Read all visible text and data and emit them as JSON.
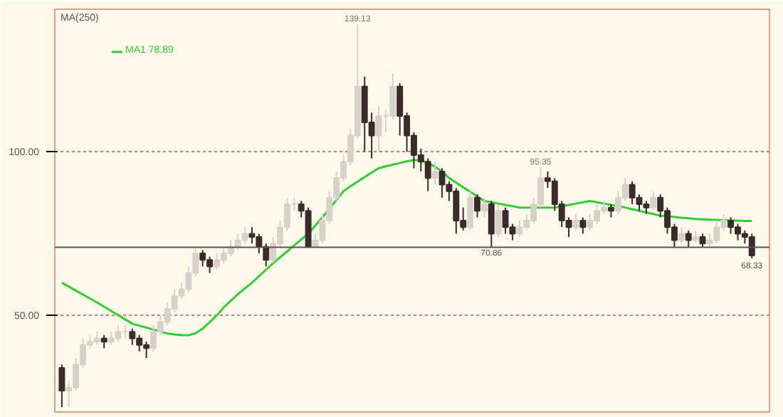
{
  "chart_data": {
    "type": "candlestick",
    "categories": [
      null,
      null,
      null,
      null,
      null,
      null,
      null,
      null,
      null,
      null,
      null,
      null,
      null,
      null,
      null,
      null,
      null,
      null,
      null,
      null,
      null,
      null,
      null,
      null,
      null,
      null,
      null,
      null,
      null,
      null,
      null,
      null,
      null,
      null,
      null,
      null,
      null,
      null,
      null,
      null,
      null,
      null,
      null,
      null,
      null,
      null,
      null,
      null,
      null,
      null,
      null,
      null,
      null,
      null,
      null,
      null,
      null,
      null,
      null,
      null,
      null,
      null,
      null,
      null,
      null,
      null,
      null,
      null,
      null,
      null,
      null,
      null,
      null,
      null,
      null,
      null,
      null,
      null,
      null,
      null,
      null,
      null,
      null,
      null,
      null,
      null,
      null,
      null,
      null,
      null,
      null,
      null,
      null,
      null,
      null,
      null,
      null,
      null,
      null
    ],
    "ohlc": [
      [
        34,
        35,
        22,
        27
      ],
      [
        27,
        30,
        22,
        28
      ],
      [
        28,
        37,
        27,
        35
      ],
      [
        35,
        43,
        34,
        41
      ],
      [
        41,
        44,
        40,
        42
      ],
      [
        42,
        45,
        41,
        43
      ],
      [
        43,
        44,
        40,
        42
      ],
      [
        42,
        45,
        41,
        43
      ],
      [
        43,
        47,
        42,
        45
      ],
      [
        45,
        47,
        43,
        45
      ],
      [
        45,
        46,
        41,
        43
      ],
      [
        43,
        44,
        39,
        41
      ],
      [
        41,
        42,
        37,
        40
      ],
      [
        40,
        47,
        39,
        45
      ],
      [
        45,
        50,
        44,
        48
      ],
      [
        48,
        54,
        47,
        52
      ],
      [
        52,
        58,
        51,
        56
      ],
      [
        56,
        60,
        55,
        58
      ],
      [
        58,
        65,
        57,
        63
      ],
      [
        63,
        71,
        62,
        69
      ],
      [
        69,
        70,
        65,
        67
      ],
      [
        67,
        68,
        63,
        65
      ],
      [
        65,
        69,
        64,
        67
      ],
      [
        67,
        71,
        66,
        69
      ],
      [
        69,
        73,
        68,
        71
      ],
      [
        71,
        75,
        70,
        73
      ],
      [
        73,
        77,
        72,
        75
      ],
      [
        75,
        77,
        72,
        74
      ],
      [
        74,
        75,
        69,
        71
      ],
      [
        71,
        72,
        65,
        67
      ],
      [
        67,
        74,
        66,
        72
      ],
      [
        72,
        79,
        71,
        77
      ],
      [
        77,
        86,
        76,
        84
      ],
      [
        84,
        86,
        82,
        84
      ],
      [
        84,
        85,
        80,
        82
      ],
      [
        82,
        83,
        70.9,
        71
      ],
      [
        71,
        75,
        70.9,
        73
      ],
      [
        73,
        81,
        72,
        79
      ],
      [
        79,
        88,
        78,
        86
      ],
      [
        86,
        94,
        85,
        92
      ],
      [
        92,
        99,
        91,
        97
      ],
      [
        97,
        107,
        96,
        105
      ],
      [
        105,
        139.13,
        104,
        120
      ],
      [
        120,
        123,
        100,
        109
      ],
      [
        109,
        112,
        98,
        105
      ],
      [
        105,
        114,
        100,
        111
      ],
      [
        111,
        113,
        106,
        111
      ],
      [
        111,
        124,
        110,
        120
      ],
      [
        120,
        121,
        105,
        111
      ],
      [
        111,
        112,
        100,
        105
      ],
      [
        105,
        106,
        95,
        99
      ],
      [
        99,
        101,
        94,
        97
      ],
      [
        97,
        98,
        88,
        92
      ],
      [
        92,
        97,
        90,
        94
      ],
      [
        94,
        95,
        86,
        90
      ],
      [
        90,
        91,
        85,
        88
      ],
      [
        88,
        89,
        75,
        79
      ],
      [
        79,
        83,
        76,
        77
      ],
      [
        77,
        88,
        76,
        86
      ],
      [
        86,
        87,
        80,
        82
      ],
      [
        82,
        86,
        80,
        84
      ],
      [
        84,
        85,
        70.86,
        75
      ],
      [
        75,
        84,
        74,
        82
      ],
      [
        82,
        83,
        75,
        77
      ],
      [
        77,
        78,
        73,
        75
      ],
      [
        75,
        79,
        74,
        77
      ],
      [
        77,
        81,
        76,
        79
      ],
      [
        79,
        86,
        78,
        84
      ],
      [
        84,
        95.35,
        83,
        92
      ],
      [
        92,
        94,
        89,
        91
      ],
      [
        91,
        92,
        82,
        84
      ],
      [
        84,
        85,
        77,
        79
      ],
      [
        79,
        80,
        74,
        77
      ],
      [
        77,
        81,
        76,
        79
      ],
      [
        79,
        80,
        75,
        77
      ],
      [
        77,
        81,
        76,
        79
      ],
      [
        79,
        84,
        78,
        82
      ],
      [
        82,
        85,
        81,
        83
      ],
      [
        83,
        84,
        80,
        82
      ],
      [
        82,
        88,
        81,
        86
      ],
      [
        86,
        92,
        85,
        90
      ],
      [
        90,
        91,
        84,
        86
      ],
      [
        86,
        87,
        82,
        84
      ],
      [
        84,
        85,
        81,
        83
      ],
      [
        83,
        88,
        82,
        86
      ],
      [
        86,
        87,
        80,
        82
      ],
      [
        82,
        83,
        75,
        77
      ],
      [
        77,
        78,
        71,
        73
      ],
      [
        73,
        77,
        72,
        75
      ],
      [
        75,
        76,
        71,
        73
      ],
      [
        73,
        76,
        72,
        74
      ],
      [
        74,
        75,
        71,
        72
      ],
      [
        72,
        75,
        71,
        73
      ],
      [
        73,
        79,
        72,
        77
      ],
      [
        77,
        81,
        76,
        79
      ],
      [
        79,
        80,
        75,
        77
      ],
      [
        77,
        78,
        73,
        75
      ],
      [
        75,
        76,
        72,
        74
      ],
      [
        74,
        75,
        67.5,
        68.33
      ]
    ],
    "colors": [
      "#3b2b2b",
      "#d6d2ca",
      "#d6d2ca",
      "#d6d2ca",
      "#d6d2ca",
      "#d6d2ca",
      "#3b2b2b",
      "#d6d2ca",
      "#d6d2ca",
      "#d6d2ca",
      "#3b2b2b",
      "#3b2b2b",
      "#3b2b2b",
      "#d6d2ca",
      "#d6d2ca",
      "#d6d2ca",
      "#d6d2ca",
      "#d6d2ca",
      "#d6d2ca",
      "#d6d2ca",
      "#3b2b2b",
      "#3b2b2b",
      "#d6d2ca",
      "#d6d2ca",
      "#d6d2ca",
      "#d6d2ca",
      "#d6d2ca",
      "#3b2b2b",
      "#3b2b2b",
      "#3b2b2b",
      "#d6d2ca",
      "#d6d2ca",
      "#d6d2ca",
      "#d6d2ca",
      "#3b2b2b",
      "#3b2b2b",
      "#d6d2ca",
      "#d6d2ca",
      "#d6d2ca",
      "#d6d2ca",
      "#d6d2ca",
      "#d6d2ca",
      "#d6d2ca",
      "#3b2b2b",
      "#3b2b2b",
      "#d6d2ca",
      "#d6d2ca",
      "#d6d2ca",
      "#3b2b2b",
      "#3b2b2b",
      "#3b2b2b",
      "#3b2b2b",
      "#3b2b2b",
      "#d6d2ca",
      "#3b2b2b",
      "#3b2b2b",
      "#3b2b2b",
      "#3b2b2b",
      "#d6d2ca",
      "#3b2b2b",
      "#d6d2ca",
      "#3b2b2b",
      "#d6d2ca",
      "#3b2b2b",
      "#3b2b2b",
      "#d6d2ca",
      "#d6d2ca",
      "#d6d2ca",
      "#d6d2ca",
      "#3b2b2b",
      "#3b2b2b",
      "#3b2b2b",
      "#3b2b2b",
      "#d6d2ca",
      "#3b2b2b",
      "#d6d2ca",
      "#d6d2ca",
      "#d6d2ca",
      "#3b2b2b",
      "#d6d2ca",
      "#d6d2ca",
      "#3b2b2b",
      "#3b2b2b",
      "#3b2b2b",
      "#d6d2ca",
      "#3b2b2b",
      "#3b2b2b",
      "#3b2b2b",
      "#d6d2ca",
      "#3b2b2b",
      "#d6d2ca",
      "#3b2b2b",
      "#d6d2ca",
      "#d6d2ca",
      "#d6d2ca",
      "#3b2b2b",
      "#3b2b2b",
      "#3b2b2b",
      "#3b2b2b"
    ],
    "series": [
      {
        "type": "line",
        "name": "MA1 78.89",
        "color": "#33cc33",
        "values": [
          60,
          58.8,
          57.6,
          56.4,
          55.2,
          54,
          52.7,
          51.4,
          50.1,
          48.8,
          47.5,
          46.9,
          46.3,
          45.7,
          45.1,
          44.5,
          44.2,
          44,
          44,
          44.6,
          46,
          48,
          50,
          52.5,
          54.5,
          56.5,
          58.3,
          60,
          62,
          64,
          66,
          67.8,
          69.6,
          71.4,
          73.2,
          75,
          77.5,
          80,
          82.6,
          85.3,
          88,
          89.5,
          90.9,
          92.3,
          93.7,
          95,
          95.6,
          96.1,
          96.6,
          97.1,
          97.5,
          97.5,
          96.5,
          95.5,
          94,
          92,
          90.6,
          89.2,
          87.8,
          86.4,
          85,
          84.6,
          84.2,
          83.8,
          83.4,
          83,
          83,
          83,
          83,
          83,
          83,
          83.4,
          83.8,
          84.2,
          84.6,
          85,
          84.6,
          84.2,
          83.8,
          83.4,
          83,
          82.5,
          82,
          81.5,
          81,
          80.5,
          80.3,
          80.1,
          79.9,
          79.7,
          79.5,
          79.4,
          79.3,
          79.2,
          79.1,
          79,
          79,
          78.9,
          78.9
        ]
      }
    ],
    "ylim": [
      20.5,
      143.6
    ],
    "yticks": [
      {
        "value": 50,
        "label": "50.00"
      },
      {
        "value": 100,
        "label": "100.00"
      }
    ],
    "grid": "y",
    "legend": "top left",
    "ref_lines": [
      {
        "axis": "y",
        "value": 70.86,
        "label": "70.86",
        "color": "#555555"
      }
    ],
    "annotations": [
      "MA(250)",
      {
        "text": "139.13",
        "y": 139.13
      },
      {
        "text": "95.35",
        "y": 95.35
      },
      {
        "text": "68.33",
        "y": 68.33
      }
    ]
  }
}
